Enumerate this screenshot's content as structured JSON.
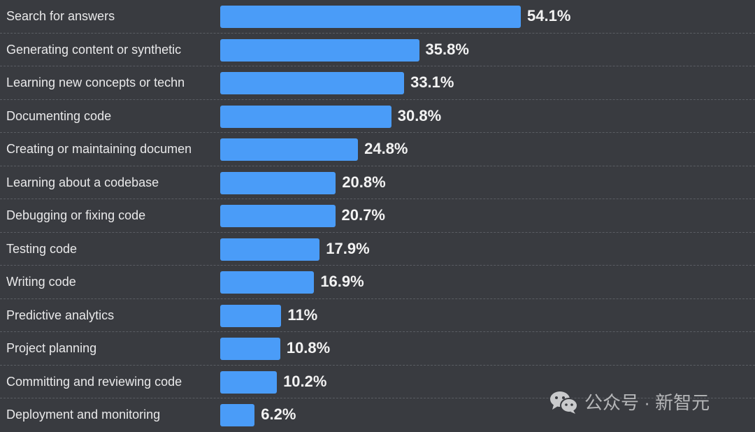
{
  "chart_data": {
    "type": "bar",
    "orientation": "horizontal",
    "categories": [
      "Search for answers",
      "Generating content or synthetic",
      "Learning new concepts or techn",
      "Documenting code",
      "Creating or maintaining documen",
      "Learning about a codebase",
      "Debugging or fixing code",
      "Testing code",
      "Writing code",
      "Predictive analytics",
      "Project planning",
      "Committing and reviewing code",
      "Deployment and monitoring"
    ],
    "values": [
      54.1,
      35.8,
      33.1,
      30.8,
      24.8,
      20.8,
      20.7,
      17.9,
      16.9,
      11,
      10.8,
      10.2,
      6.2
    ],
    "data_labels": [
      "54.1%",
      "35.8%",
      "33.1%",
      "30.8%",
      "24.8%",
      "20.8%",
      "20.7%",
      "17.9%",
      "16.9%",
      "11%",
      "10.8%",
      "10.2%",
      "6.2%"
    ],
    "unit": "%",
    "xlim": [
      0,
      54.1
    ],
    "grid": "dashed row separators",
    "bar_color": "#4a9cf8",
    "background": "#393b40"
  },
  "watermark": {
    "icon": "wechat-icon",
    "text": "公众号 · 新智元"
  }
}
